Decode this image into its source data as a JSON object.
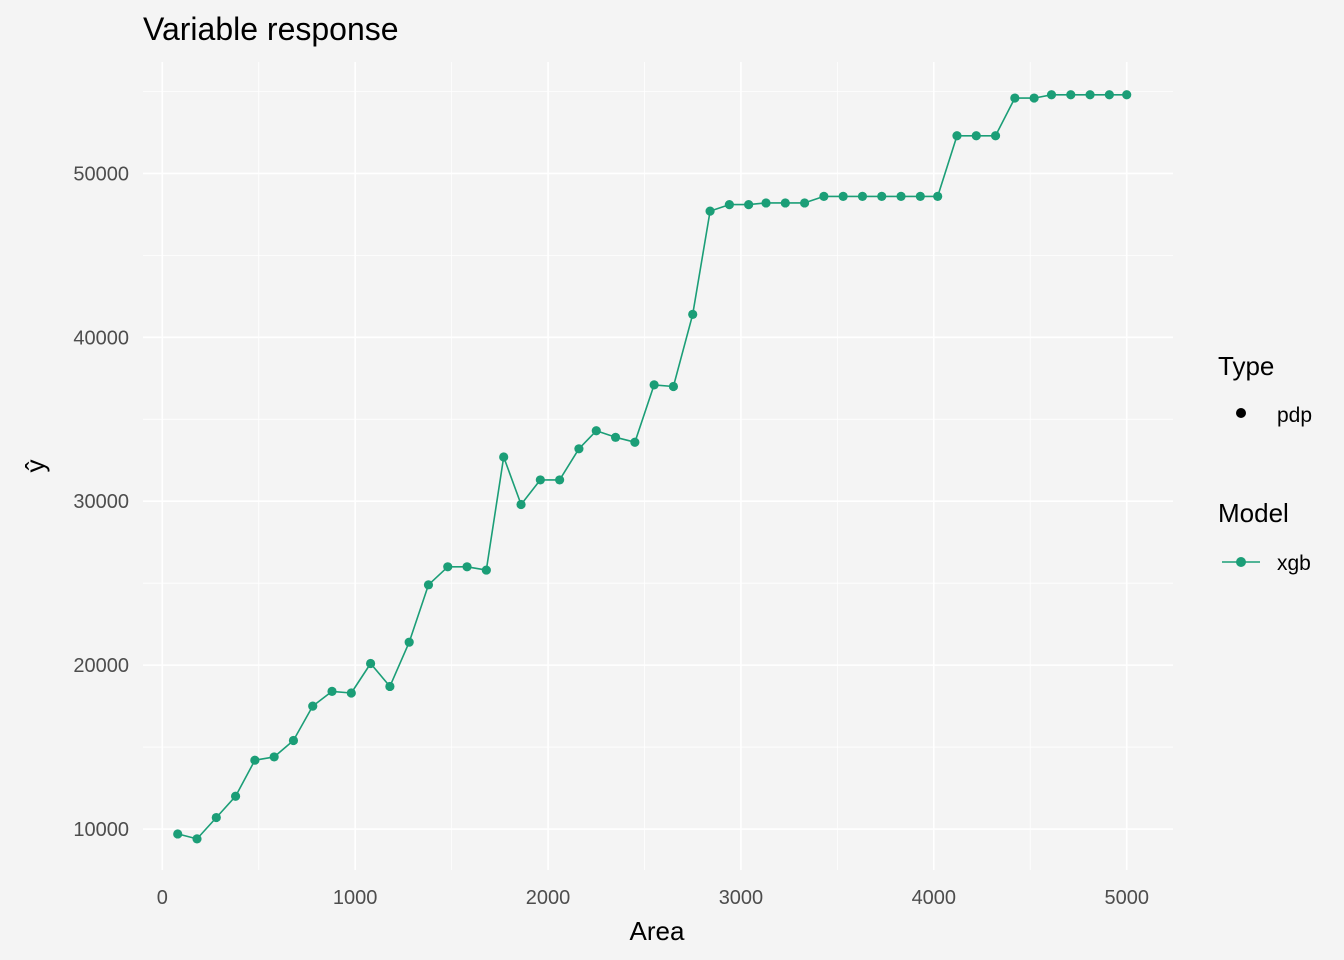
{
  "chart_data": {
    "type": "line",
    "title": "Variable response",
    "xlabel": "Area",
    "ylabel": "ŷ",
    "xlim": [
      -100,
      5240
    ],
    "ylim": [
      7500,
      56800
    ],
    "x_ticks": [
      0,
      1000,
      2000,
      3000,
      4000,
      5000
    ],
    "x_tick_labels": [
      "0",
      "1000",
      "2000",
      "3000",
      "4000",
      "5000"
    ],
    "y_ticks": [
      10000,
      20000,
      30000,
      40000,
      50000
    ],
    "y_tick_labels": [
      "10000",
      "20000",
      "30000",
      "40000",
      "50000"
    ],
    "grid": true,
    "legend_position": "right",
    "legends": [
      {
        "title": "Type",
        "entries": [
          {
            "label": "pdp",
            "shape": "point",
            "color": "#000000"
          }
        ]
      },
      {
        "title": "Model",
        "entries": [
          {
            "label": "xgb",
            "shape": "line-point",
            "color": "#1b9e77"
          }
        ]
      }
    ],
    "series": [
      {
        "name": "xgb",
        "color": "#1b9e77",
        "x": [
          80,
          180,
          280,
          380,
          480,
          580,
          680,
          780,
          880,
          980,
          1080,
          1180,
          1280,
          1380,
          1480,
          1580,
          1680,
          1770,
          1860,
          1960,
          2060,
          2160,
          2250,
          2350,
          2450,
          2550,
          2650,
          2750,
          2840,
          2940,
          3040,
          3130,
          3230,
          3330,
          3430,
          3530,
          3630,
          3730,
          3830,
          3930,
          4020,
          4120,
          4220,
          4320,
          4420,
          4520,
          4610,
          4710,
          4810,
          4910,
          5000
        ],
        "values": [
          9700,
          9400,
          10700,
          12000,
          14200,
          14400,
          15400,
          17500,
          18400,
          18300,
          20100,
          18700,
          21400,
          24900,
          26000,
          26000,
          25800,
          32700,
          29800,
          31300,
          31300,
          33200,
          34300,
          33900,
          33600,
          37100,
          37000,
          41400,
          47700,
          48100,
          48100,
          48200,
          48200,
          48200,
          48600,
          48600,
          48600,
          48600,
          48600,
          48600,
          48600,
          52300,
          52300,
          52300,
          54600,
          54600,
          54800,
          54800,
          54800,
          54800,
          54800
        ]
      }
    ]
  }
}
